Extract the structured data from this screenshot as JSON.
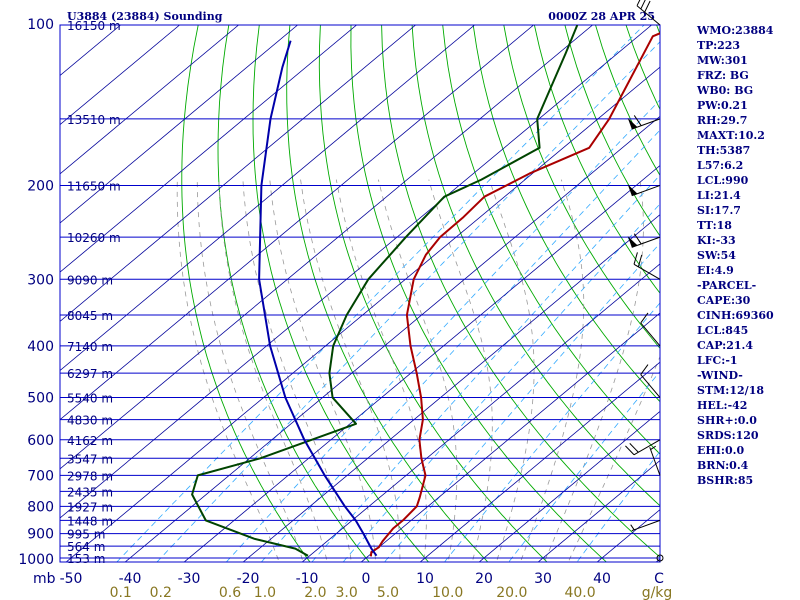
{
  "header": {
    "station": "U3884 (23884) Sounding",
    "time": "0000Z 28 APR 25"
  },
  "indices": [
    "WMO:23884",
    "TP:223",
    "MW:301",
    "FRZ: BG",
    "WB0: BG",
    "PW:0.21",
    "RH:29.7",
    "MAXT:10.2",
    "TH:5387",
    "L57:6.2",
    "LCL:990",
    "LI:21.4",
    "SI:17.7",
    "TT:18",
    "KI:-33",
    "SW:54",
    "EI:4.9",
    "-PARCEL-",
    "CAPE:30",
    "CINH:69360",
    "LCL:845",
    "CAP:21.4",
    "LFC:-1",
    "-WIND-",
    "STM:12/18",
    "HEL:-42",
    "SHR+:0.0",
    "SRDS:120",
    "EHI:0.0",
    "BRN:0.4",
    "BSHR:85"
  ],
  "colors": {
    "isobar": "#0000cc",
    "isotherm": "#000099",
    "dry_adiabat": "#00aa00",
    "moist_adiabat": "#999999",
    "mixing_ratio": "#33aaff",
    "temperature": "#aa0000",
    "dewpoint": "#004400",
    "parcel": "#0000aa",
    "index_text": "#000080",
    "bottom_axis_text": "#887722"
  },
  "chart_data": {
    "type": "skew-t",
    "pressure_axis": {
      "unit": "mb",
      "ylim_mb": [
        1000,
        100
      ],
      "scale": "log",
      "tick_labels": [
        {
          "p": 100,
          "label": "100"
        },
        {
          "p": 200,
          "label": "200"
        },
        {
          "p": 300,
          "label": "300"
        },
        {
          "p": 400,
          "label": "400"
        },
        {
          "p": 500,
          "label": "500"
        },
        {
          "p": 600,
          "label": "600"
        },
        {
          "p": 700,
          "label": "700"
        },
        {
          "p": 800,
          "label": "800"
        },
        {
          "p": 900,
          "label": "900"
        },
        {
          "p": 1000,
          "label": "1000"
        }
      ]
    },
    "temperature_axis": {
      "unit": "C",
      "xlim_c": [
        -50,
        50
      ],
      "ticks": [
        -50,
        -40,
        -30,
        -20,
        -10,
        0,
        10,
        20,
        30,
        40
      ],
      "labels": [
        "-50",
        "-40",
        "-30",
        "-20",
        "-10",
        "0",
        "10",
        "20",
        "30",
        "40",
        "C"
      ]
    },
    "mixing_ratio_axis": {
      "unit": "g/kg",
      "values": [
        0.1,
        0.2,
        0.6,
        1.0,
        2.0,
        3.0,
        5.0,
        10.0,
        20.0,
        40.0
      ],
      "labels": [
        "0.1",
        "0.2",
        "0.6",
        "1.0",
        "2.0",
        "3.0",
        "5.0",
        "10.0",
        "20.0",
        "40.0",
        "g/kg"
      ]
    },
    "height_labels": [
      {
        "p": 100,
        "label": "16150 m"
      },
      {
        "p": 150,
        "label": "13510 m"
      },
      {
        "p": 200,
        "label": "11650 m"
      },
      {
        "p": 250,
        "label": "10260 m"
      },
      {
        "p": 300,
        "label": "9090 m"
      },
      {
        "p": 350,
        "label": "8045 m"
      },
      {
        "p": 400,
        "label": "7140 m"
      },
      {
        "p": 450,
        "label": "6297 m"
      },
      {
        "p": 500,
        "label": "5540 m"
      },
      {
        "p": 550,
        "label": "4830 m"
      },
      {
        "p": 600,
        "label": "4162 m"
      },
      {
        "p": 650,
        "label": "3547 m"
      },
      {
        "p": 700,
        "label": "2978 m"
      },
      {
        "p": 750,
        "label": "2435 m"
      },
      {
        "p": 800,
        "label": "1927 m"
      },
      {
        "p": 850,
        "label": "1448 m"
      },
      {
        "p": 900,
        "label": "995 m"
      },
      {
        "p": 950,
        "label": "564 m"
      },
      {
        "p": 1000,
        "label": "153 m"
      }
    ],
    "series": [
      {
        "type": "line",
        "points": [
          {
            "p": 100,
            "t": -55.3
          },
          {
            "p": 105,
            "t": -57.5
          },
          {
            "p": 150,
            "t": -48.1
          },
          {
            "p": 170,
            "t": -45.6
          },
          {
            "p": 190,
            "t": -50.5
          },
          {
            "p": 210,
            "t": -53.4
          },
          {
            "p": 230,
            "t": -52.8
          },
          {
            "p": 250,
            "t": -52.7
          },
          {
            "p": 270,
            "t": -51.5
          },
          {
            "p": 300,
            "t": -48.6
          },
          {
            "p": 350,
            "t": -42.5
          },
          {
            "p": 400,
            "t": -35.6
          },
          {
            "p": 450,
            "t": -29.0
          },
          {
            "p": 500,
            "t": -23.3
          },
          {
            "p": 550,
            "t": -18.5
          },
          {
            "p": 600,
            "t": -15.0
          },
          {
            "p": 650,
            "t": -10.9
          },
          {
            "p": 700,
            "t": -6.7
          },
          {
            "p": 770,
            "t": -3.2
          },
          {
            "p": 800,
            "t": -1.9
          },
          {
            "p": 850,
            "t": -1.4
          },
          {
            "p": 880,
            "t": -1.4
          },
          {
            "p": 930,
            "t": -0.6
          },
          {
            "p": 955,
            "t": 0.0
          },
          {
            "p": 975,
            "t": -0.3
          },
          {
            "p": 993,
            "t": 0.5
          }
        ]
      },
      {
        "type": "line",
        "points": [
          {
            "p": 100,
            "t": -72.6
          },
          {
            "p": 113,
            "t": -68.8
          },
          {
            "p": 150,
            "t": -60.3
          },
          {
            "p": 170,
            "t": -54.0
          },
          {
            "p": 195,
            "t": -57.4
          },
          {
            "p": 210,
            "t": -60.2
          },
          {
            "p": 250,
            "t": -58.5
          },
          {
            "p": 300,
            "t": -56.3
          },
          {
            "p": 350,
            "t": -52.7
          },
          {
            "p": 400,
            "t": -48.7
          },
          {
            "p": 450,
            "t": -43.8
          },
          {
            "p": 500,
            "t": -38.3
          },
          {
            "p": 560,
            "t": -29.0
          },
          {
            "p": 650,
            "t": -38.2
          },
          {
            "p": 700,
            "t": -45.3
          },
          {
            "p": 760,
            "t": -42.4
          },
          {
            "p": 850,
            "t": -34.8
          },
          {
            "p": 920,
            "t": -22.9
          },
          {
            "p": 960,
            "t": -13.9
          },
          {
            "p": 990,
            "t": -10.3
          }
        ]
      },
      {
        "type": "line",
        "points": [
          {
            "p": 990,
            "t": 1.3
          },
          {
            "p": 960,
            "t": -1.0
          },
          {
            "p": 900,
            "t": -5.4
          },
          {
            "p": 850,
            "t": -9.4
          },
          {
            "p": 800,
            "t": -14.1
          },
          {
            "p": 700,
            "t": -23.8
          },
          {
            "p": 600,
            "t": -34.5
          },
          {
            "p": 500,
            "t": -46.3
          },
          {
            "p": 400,
            "t": -59.4
          },
          {
            "p": 300,
            "t": -74.8
          },
          {
            "p": 200,
            "t": -93.5
          },
          {
            "p": 150,
            "t": -105.5
          },
          {
            "p": 120,
            "t": -114.0
          },
          {
            "p": 107,
            "t": -118.0
          }
        ]
      }
    ],
    "background_lines": {
      "dry_adiabats_c": [
        -10,
        0,
        10,
        20,
        30,
        40,
        50,
        60,
        70,
        80,
        90,
        100,
        110,
        120,
        130,
        140,
        150,
        160,
        170,
        180,
        190,
        200,
        210,
        220,
        230,
        240,
        250
      ],
      "moist_adiabats_c": [
        -12,
        -8,
        -4,
        0,
        4,
        8,
        12,
        16,
        20,
        24,
        28,
        32,
        36
      ],
      "mixing_ratios_gkg": [
        0.1,
        0.2,
        0.6,
        1.0,
        2.0,
        3.0,
        5.0,
        10.0,
        20.0,
        40.0
      ]
    },
    "wind_barbs": [
      {
        "p": 1000,
        "dir": 0,
        "speed_kt": 0
      },
      {
        "p": 850,
        "dir": 250,
        "speed_kt": 5
      },
      {
        "p": 700,
        "dir": 340,
        "speed_kt": 5
      },
      {
        "p": 600,
        "dir": 240,
        "speed_kt": 20
      },
      {
        "p": 500,
        "dir": 320,
        "speed_kt": 10
      },
      {
        "p": 400,
        "dir": 320,
        "speed_kt": 10
      },
      {
        "p": 300,
        "dir": 300,
        "speed_kt": 20
      },
      {
        "p": 250,
        "dir": 250,
        "speed_kt": 60
      },
      {
        "p": 200,
        "dir": 250,
        "speed_kt": 50
      },
      {
        "p": 150,
        "dir": 250,
        "speed_kt": 60
      },
      {
        "p": 100,
        "dir": 310,
        "speed_kt": 30
      }
    ]
  }
}
